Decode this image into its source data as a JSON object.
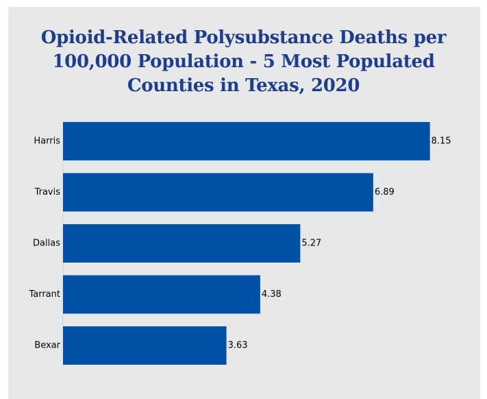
{
  "chart_data": {
    "type": "bar",
    "orientation": "horizontal",
    "title": "Opioid-Related Polysubstance Deaths per 100,000 Population - 5 Most Populated Counties in Texas, 2020",
    "title_lines": [
      "Opioid-Related Polysubstance Deaths per",
      "100,000 Population - 5 Most Populated",
      "Counties in Texas, 2020"
    ],
    "categories": [
      "Harris",
      "Travis",
      "Dallas",
      "Tarrant",
      "Bexar"
    ],
    "values": [
      8.15,
      6.89,
      5.27,
      4.38,
      3.63
    ],
    "value_labels": [
      "8.15",
      "6.89",
      "5.27",
      "4.38",
      "3.63"
    ],
    "xlim": [
      0,
      9.19
    ],
    "grid": false,
    "legend": "none",
    "bar_color": "#0050a8",
    "background_color": "#e7e8ea",
    "title_color": "#1e3d8e"
  }
}
